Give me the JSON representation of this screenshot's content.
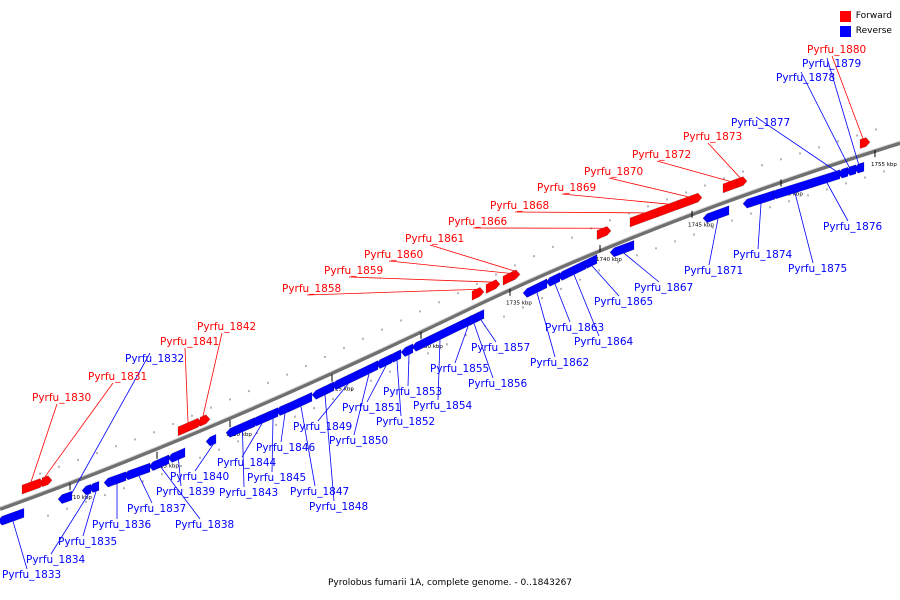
{
  "legend": {
    "forward": "Forward",
    "reverse": "Reverse",
    "forward_color": "#ff0000",
    "reverse_color": "#0000ff"
  },
  "caption": "Pyrolobus fumarii 1A, complete genome. - 0..1843267",
  "ticks": [
    "1710 kbp",
    "1715 kbp",
    "1720 kbp",
    "1725 kbp",
    "1730 kbp",
    "1735 kbp",
    "1740 kbp",
    "1745 kbp",
    "1750 kbp",
    "1755 kbp"
  ],
  "genes": [
    {
      "name": "Pyrfu_1830",
      "strand": "forward"
    },
    {
      "name": "Pyrfu_1831",
      "strand": "forward"
    },
    {
      "name": "Pyrfu_1832",
      "strand": "reverse"
    },
    {
      "name": "Pyrfu_1833",
      "strand": "reverse"
    },
    {
      "name": "Pyrfu_1834",
      "strand": "reverse"
    },
    {
      "name": "Pyrfu_1835",
      "strand": "reverse"
    },
    {
      "name": "Pyrfu_1836",
      "strand": "reverse"
    },
    {
      "name": "Pyrfu_1837",
      "strand": "reverse"
    },
    {
      "name": "Pyrfu_1838",
      "strand": "reverse"
    },
    {
      "name": "Pyrfu_1839",
      "strand": "reverse"
    },
    {
      "name": "Pyrfu_1840",
      "strand": "reverse"
    },
    {
      "name": "Pyrfu_1841",
      "strand": "forward"
    },
    {
      "name": "Pyrfu_1842",
      "strand": "forward"
    },
    {
      "name": "Pyrfu_1843",
      "strand": "reverse"
    },
    {
      "name": "Pyrfu_1844",
      "strand": "reverse"
    },
    {
      "name": "Pyrfu_1845",
      "strand": "reverse"
    },
    {
      "name": "Pyrfu_1846",
      "strand": "reverse"
    },
    {
      "name": "Pyrfu_1847",
      "strand": "reverse"
    },
    {
      "name": "Pyrfu_1848",
      "strand": "reverse"
    },
    {
      "name": "Pyrfu_1849",
      "strand": "reverse"
    },
    {
      "name": "Pyrfu_1850",
      "strand": "reverse"
    },
    {
      "name": "Pyrfu_1851",
      "strand": "reverse"
    },
    {
      "name": "Pyrfu_1852",
      "strand": "reverse"
    },
    {
      "name": "Pyrfu_1853",
      "strand": "reverse"
    },
    {
      "name": "Pyrfu_1854",
      "strand": "reverse"
    },
    {
      "name": "Pyrfu_1855",
      "strand": "reverse"
    },
    {
      "name": "Pyrfu_1856",
      "strand": "reverse"
    },
    {
      "name": "Pyrfu_1857",
      "strand": "reverse"
    },
    {
      "name": "Pyrfu_1858",
      "strand": "forward"
    },
    {
      "name": "Pyrfu_1859",
      "strand": "forward"
    },
    {
      "name": "Pyrfu_1860",
      "strand": "forward"
    },
    {
      "name": "Pyrfu_1861",
      "strand": "forward"
    },
    {
      "name": "Pyrfu_1862",
      "strand": "reverse"
    },
    {
      "name": "Pyrfu_1863",
      "strand": "reverse"
    },
    {
      "name": "Pyrfu_1864",
      "strand": "reverse"
    },
    {
      "name": "Pyrfu_1865",
      "strand": "reverse"
    },
    {
      "name": "Pyrfu_1866",
      "strand": "forward"
    },
    {
      "name": "Pyrfu_1867",
      "strand": "reverse"
    },
    {
      "name": "Pyrfu_1868",
      "strand": "forward"
    },
    {
      "name": "Pyrfu_1869",
      "strand": "forward"
    },
    {
      "name": "Pyrfu_1870",
      "strand": "forward"
    },
    {
      "name": "Pyrfu_1871",
      "strand": "reverse"
    },
    {
      "name": "Pyrfu_1872",
      "strand": "forward"
    },
    {
      "name": "Pyrfu_1873",
      "strand": "forward"
    },
    {
      "name": "Pyrfu_1874",
      "strand": "reverse"
    },
    {
      "name": "Pyrfu_1875",
      "strand": "reverse"
    },
    {
      "name": "Pyrfu_1876",
      "strand": "reverse"
    },
    {
      "name": "Pyrfu_1877",
      "strand": "reverse"
    },
    {
      "name": "Pyrfu_1878",
      "strand": "reverse"
    },
    {
      "name": "Pyrfu_1879",
      "strand": "reverse"
    },
    {
      "name": "Pyrfu_1880",
      "strand": "forward"
    }
  ]
}
